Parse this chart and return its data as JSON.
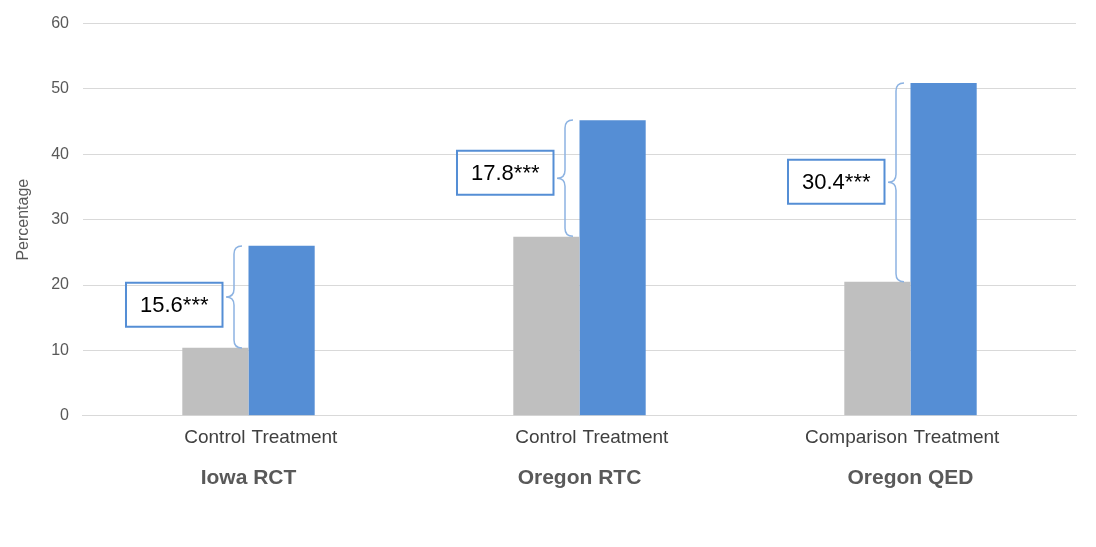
{
  "chart_data": {
    "type": "bar",
    "ylabel": "Percentage",
    "categories": [
      "Iowa RCT",
      "Oregon RTC",
      "Oregon QED"
    ],
    "series": [
      {
        "color": "#bfbfbf",
        "values": [
          10.4,
          27.4,
          20.5
        ]
      },
      {
        "color": "#558ed5",
        "values": [
          26.0,
          45.2,
          50.9
        ]
      }
    ],
    "ylim": [
      0,
      60
    ],
    "yticks": [
      0,
      10,
      20,
      30,
      40,
      50,
      60
    ],
    "grid": "y",
    "legend": false,
    "annotations": [
      "Control",
      "Treatment",
      "Control",
      "Treatment",
      "Comparison",
      "Treatment",
      {
        "text": "15.6***",
        "x": "Iowa RCT",
        "y": 17
      },
      {
        "text": "17.8***",
        "x": "Oregon RTC",
        "y": 37.2
      },
      {
        "text": "30.4***",
        "x": "Oregon QED",
        "y": 35.8
      }
    ]
  }
}
